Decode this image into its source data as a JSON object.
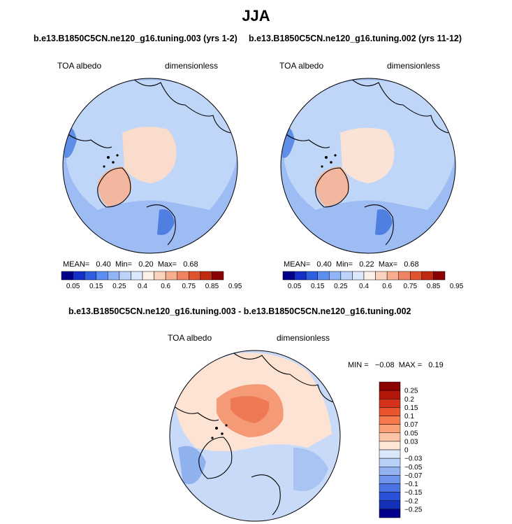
{
  "title": "JJA",
  "colors": {
    "land_outline": "#000000",
    "ocean_light": "#bcd3f7",
    "ocean_mid": "#8fb4f1",
    "ice_warm": "#f9d8c8",
    "ice_warmer": "#f2b19a"
  },
  "panels": [
    {
      "subtitle": "b.e13.B1850C5CN.ne120_g16.tuning.003 (yrs 1-2)",
      "left_label": "TOA albedo",
      "right_label": "dimensionless",
      "mean_label": "MEAN=",
      "mean_value": "0.40",
      "min_label": "Min=",
      "min_value": "0.20",
      "max_label": "Max=",
      "max_value": "0.68"
    },
    {
      "subtitle": "b.e13.B1850C5CN.ne120_g16.tuning.002 (yrs 11-12)",
      "left_label": "TOA albedo",
      "right_label": "dimensionless",
      "mean_label": "MEAN=",
      "mean_value": "0.40",
      "min_label": "Min=",
      "min_value": "0.22",
      "max_label": "Max=",
      "max_value": "0.68"
    }
  ],
  "diff_panel": {
    "subtitle": "b.e13.B1850C5CN.ne120_g16.tuning.003 - b.e13.B1850C5CN.ne120_g16.tuning.002",
    "left_label": "TOA albedo",
    "right_label": "dimensionless",
    "min_label": "MIN =",
    "min_value": "−0.08",
    "max_label": "MAX =",
    "max_value": "0.19"
  },
  "chart_data": [
    {
      "type": "heatmap",
      "title": "b.e13.B1850C5CN.ne120_g16.tuning.003 (yrs 1-2)",
      "variable": "TOA albedo",
      "units": "dimensionless",
      "projection": "north polar stereographic",
      "stats": {
        "mean": 0.4,
        "min": 0.2,
        "max": 0.68
      },
      "colorbar_levels": [
        "0.05",
        "0.15",
        "0.25",
        "0.4",
        "0.6",
        "0.75",
        "0.85",
        "0.95"
      ],
      "colorbar_colors": [
        "#00008b",
        "#1530c8",
        "#2f5fe0",
        "#5b8ef0",
        "#8fb4f8",
        "#bcd4fb",
        "#dbe8fd",
        "#fdf0e6",
        "#fbd3bd",
        "#f7ae8e",
        "#ef8260",
        "#e0532f",
        "#c02a10",
        "#8b0000"
      ]
    },
    {
      "type": "heatmap",
      "title": "b.e13.B1850C5CN.ne120_g16.tuning.002 (yrs 11-12)",
      "variable": "TOA albedo",
      "units": "dimensionless",
      "projection": "north polar stereographic",
      "stats": {
        "mean": 0.4,
        "min": 0.22,
        "max": 0.68
      },
      "colorbar_levels": [
        "0.05",
        "0.15",
        "0.25",
        "0.4",
        "0.6",
        "0.75",
        "0.85",
        "0.95"
      ],
      "colorbar_colors": [
        "#00008b",
        "#1530c8",
        "#2f5fe0",
        "#5b8ef0",
        "#8fb4f8",
        "#bcd4fb",
        "#dbe8fd",
        "#fdf0e6",
        "#fbd3bd",
        "#f7ae8e",
        "#ef8260",
        "#e0532f",
        "#c02a10",
        "#8b0000"
      ]
    },
    {
      "type": "heatmap",
      "title": "b.e13.B1850C5CN.ne120_g16.tuning.003 - b.e13.B1850C5CN.ne120_g16.tuning.002",
      "variable": "TOA albedo",
      "units": "dimensionless",
      "projection": "north polar stereographic",
      "stats": {
        "min": -0.08,
        "max": 0.19
      },
      "colorbar_levels": [
        "0.25",
        "0.2",
        "0.15",
        "0.1",
        "0.07",
        "0.05",
        "0.03",
        "0",
        "−0.03",
        "−0.05",
        "−0.07",
        "−0.1",
        "−0.15",
        "−0.2",
        "−0.25"
      ],
      "colorbar_colors": [
        "#8b0000",
        "#b3170a",
        "#d4321a",
        "#ea5530",
        "#f77a4e",
        "#fb9f76",
        "#fcc4a6",
        "#fde6d6",
        "#dbe7fb",
        "#b9d1f7",
        "#93b4f1",
        "#6e94ec",
        "#4a73e6",
        "#2a50d8",
        "#1430b8",
        "#00008b"
      ]
    }
  ]
}
